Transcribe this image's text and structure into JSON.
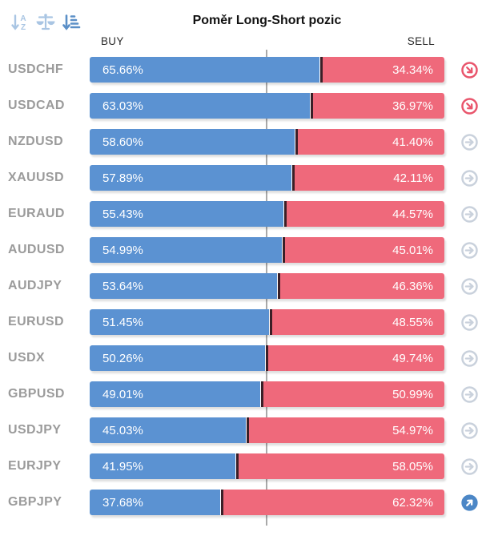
{
  "header": {
    "title": "Poměr Long-Short pozic",
    "buy_label": "BUY",
    "sell_label": "SELL",
    "sort_icons": [
      {
        "name": "sort-alphabetical-icon",
        "active": false
      },
      {
        "name": "balance-scale-icon",
        "active": false
      },
      {
        "name": "sort-amount-icon",
        "active": true
      }
    ]
  },
  "colors": {
    "buy": "#5b92d2",
    "sell": "#ef697b",
    "divider": "#3a1f27",
    "label": "#9b9b9b",
    "line": "#a9a9a9",
    "icon-neutral": "#c9d1dc",
    "icon-down": "#e9556c",
    "icon-up": "#4c87c6",
    "sort-idle": "#a9c5e3",
    "sort-active": "#5b8fc7"
  },
  "rows": [
    {
      "pair": "USDCHF",
      "buy": "65.66%",
      "sell": "34.34%",
      "buy_pct": 65.66,
      "trend": "down"
    },
    {
      "pair": "USDCAD",
      "buy": "63.03%",
      "sell": "36.97%",
      "buy_pct": 63.03,
      "trend": "down"
    },
    {
      "pair": "NZDUSD",
      "buy": "58.60%",
      "sell": "41.40%",
      "buy_pct": 58.6,
      "trend": "neutral"
    },
    {
      "pair": "XAUUSD",
      "buy": "57.89%",
      "sell": "42.11%",
      "buy_pct": 57.89,
      "trend": "neutral"
    },
    {
      "pair": "EURAUD",
      "buy": "55.43%",
      "sell": "44.57%",
      "buy_pct": 55.43,
      "trend": "neutral"
    },
    {
      "pair": "AUDUSD",
      "buy": "54.99%",
      "sell": "45.01%",
      "buy_pct": 54.99,
      "trend": "neutral"
    },
    {
      "pair": "AUDJPY",
      "buy": "53.64%",
      "sell": "46.36%",
      "buy_pct": 53.64,
      "trend": "neutral"
    },
    {
      "pair": "EURUSD",
      "buy": "51.45%",
      "sell": "48.55%",
      "buy_pct": 51.45,
      "trend": "neutral"
    },
    {
      "pair": "USDX",
      "buy": "50.26%",
      "sell": "49.74%",
      "buy_pct": 50.26,
      "trend": "neutral"
    },
    {
      "pair": "GBPUSD",
      "buy": "49.01%",
      "sell": "50.99%",
      "buy_pct": 49.01,
      "trend": "neutral"
    },
    {
      "pair": "USDJPY",
      "buy": "45.03%",
      "sell": "54.97%",
      "buy_pct": 45.03,
      "trend": "neutral"
    },
    {
      "pair": "EURJPY",
      "buy": "41.95%",
      "sell": "58.05%",
      "buy_pct": 41.95,
      "trend": "neutral"
    },
    {
      "pair": "GBPJPY",
      "buy": "37.68%",
      "sell": "62.32%",
      "buy_pct": 37.68,
      "trend": "up"
    }
  ],
  "chart_data": {
    "type": "bar",
    "orientation": "horizontal-stacked",
    "title": "Poměr Long-Short pozic",
    "unit": "%",
    "categories": [
      "USDCHF",
      "USDCAD",
      "NZDUSD",
      "XAUUSD",
      "EURAUD",
      "AUDUSD",
      "AUDJPY",
      "EURUSD",
      "USDX",
      "GBPUSD",
      "USDJPY",
      "EURJPY",
      "GBPJPY"
    ],
    "series": [
      {
        "name": "BUY",
        "color": "#5b92d2",
        "values": [
          65.66,
          63.03,
          58.6,
          57.89,
          55.43,
          54.99,
          53.64,
          51.45,
          50.26,
          49.01,
          45.03,
          41.95,
          37.68
        ]
      },
      {
        "name": "SELL",
        "color": "#ef697b",
        "values": [
          34.34,
          36.97,
          41.4,
          42.11,
          44.57,
          45.01,
          46.36,
          48.55,
          49.74,
          50.99,
          54.97,
          58.05,
          62.32
        ]
      }
    ],
    "row_trend": [
      "down",
      "down",
      "neutral",
      "neutral",
      "neutral",
      "neutral",
      "neutral",
      "neutral",
      "neutral",
      "neutral",
      "neutral",
      "neutral",
      "up"
    ],
    "xlim": [
      0,
      100
    ],
    "center_gridline": 50,
    "legend_position": "top (BUY left, SELL right)"
  }
}
